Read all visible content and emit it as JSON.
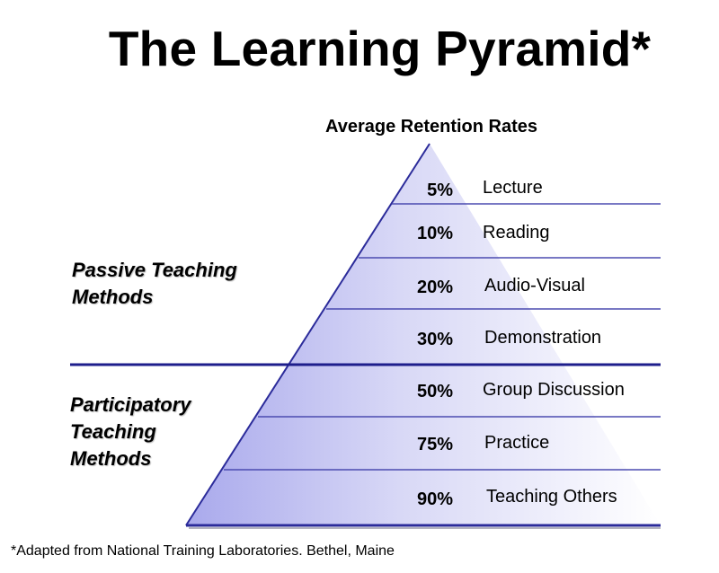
{
  "title": "The Learning Pyramid*",
  "subtitle": "Average Retention Rates",
  "groups": {
    "passive": [
      "Passive Teaching",
      "Methods"
    ],
    "participatory": [
      "Participatory",
      "Teaching",
      "Methods"
    ]
  },
  "levels": [
    {
      "pct": "5%",
      "method": "Lecture"
    },
    {
      "pct": "10%",
      "method": "Reading"
    },
    {
      "pct": "20%",
      "method": "Audio-Visual"
    },
    {
      "pct": "30%",
      "method": "Demonstration"
    },
    {
      "pct": "50%",
      "method": "Group Discussion"
    },
    {
      "pct": "75%",
      "method": "Practice"
    },
    {
      "pct": "90%",
      "method": "Teaching Others"
    }
  ],
  "footnote": "*Adapted from National Training Laboratories. Bethel, Maine",
  "colors": {
    "line": "#2b2b9a",
    "fill_dark": "#b3b3ee",
    "fill_light": "#ffffff"
  }
}
